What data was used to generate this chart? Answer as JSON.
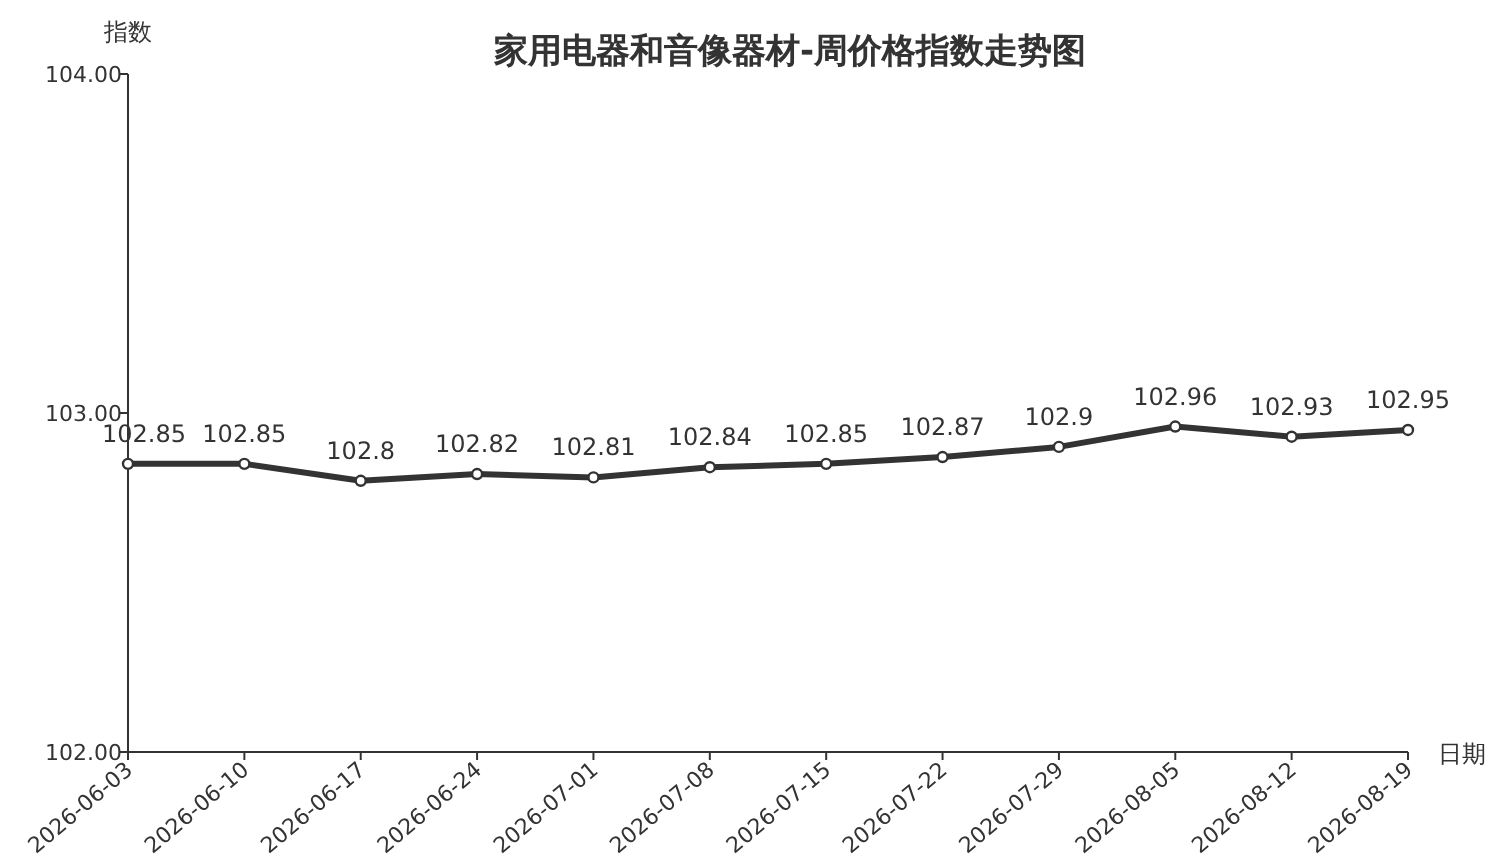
{
  "chart_data": {
    "type": "line",
    "title": "家用电器和音像器材-周价格指数走势图",
    "xlabel": "日期",
    "ylabel": "指数",
    "categories": [
      "2026-06-03",
      "2026-06-10",
      "2026-06-17",
      "2026-06-24",
      "2026-07-01",
      "2026-07-08",
      "2026-07-15",
      "2026-07-22",
      "2026-07-29",
      "2026-08-05",
      "2026-08-12",
      "2026-08-19"
    ],
    "series": [
      {
        "color": "#333333",
        "values": [
          102.85,
          102.85,
          102.8,
          102.82,
          102.81,
          102.84,
          102.85,
          102.87,
          102.9,
          102.96,
          102.93,
          102.95
        ]
      }
    ],
    "ylim": [
      102,
      104
    ],
    "yticks": [
      {
        "value": 102,
        "label": "102.00"
      },
      {
        "value": 103,
        "label": "103.00"
      },
      {
        "value": 104,
        "label": "104.00"
      }
    ],
    "data_labels": true,
    "marker": "circle",
    "line_style": "solid"
  }
}
